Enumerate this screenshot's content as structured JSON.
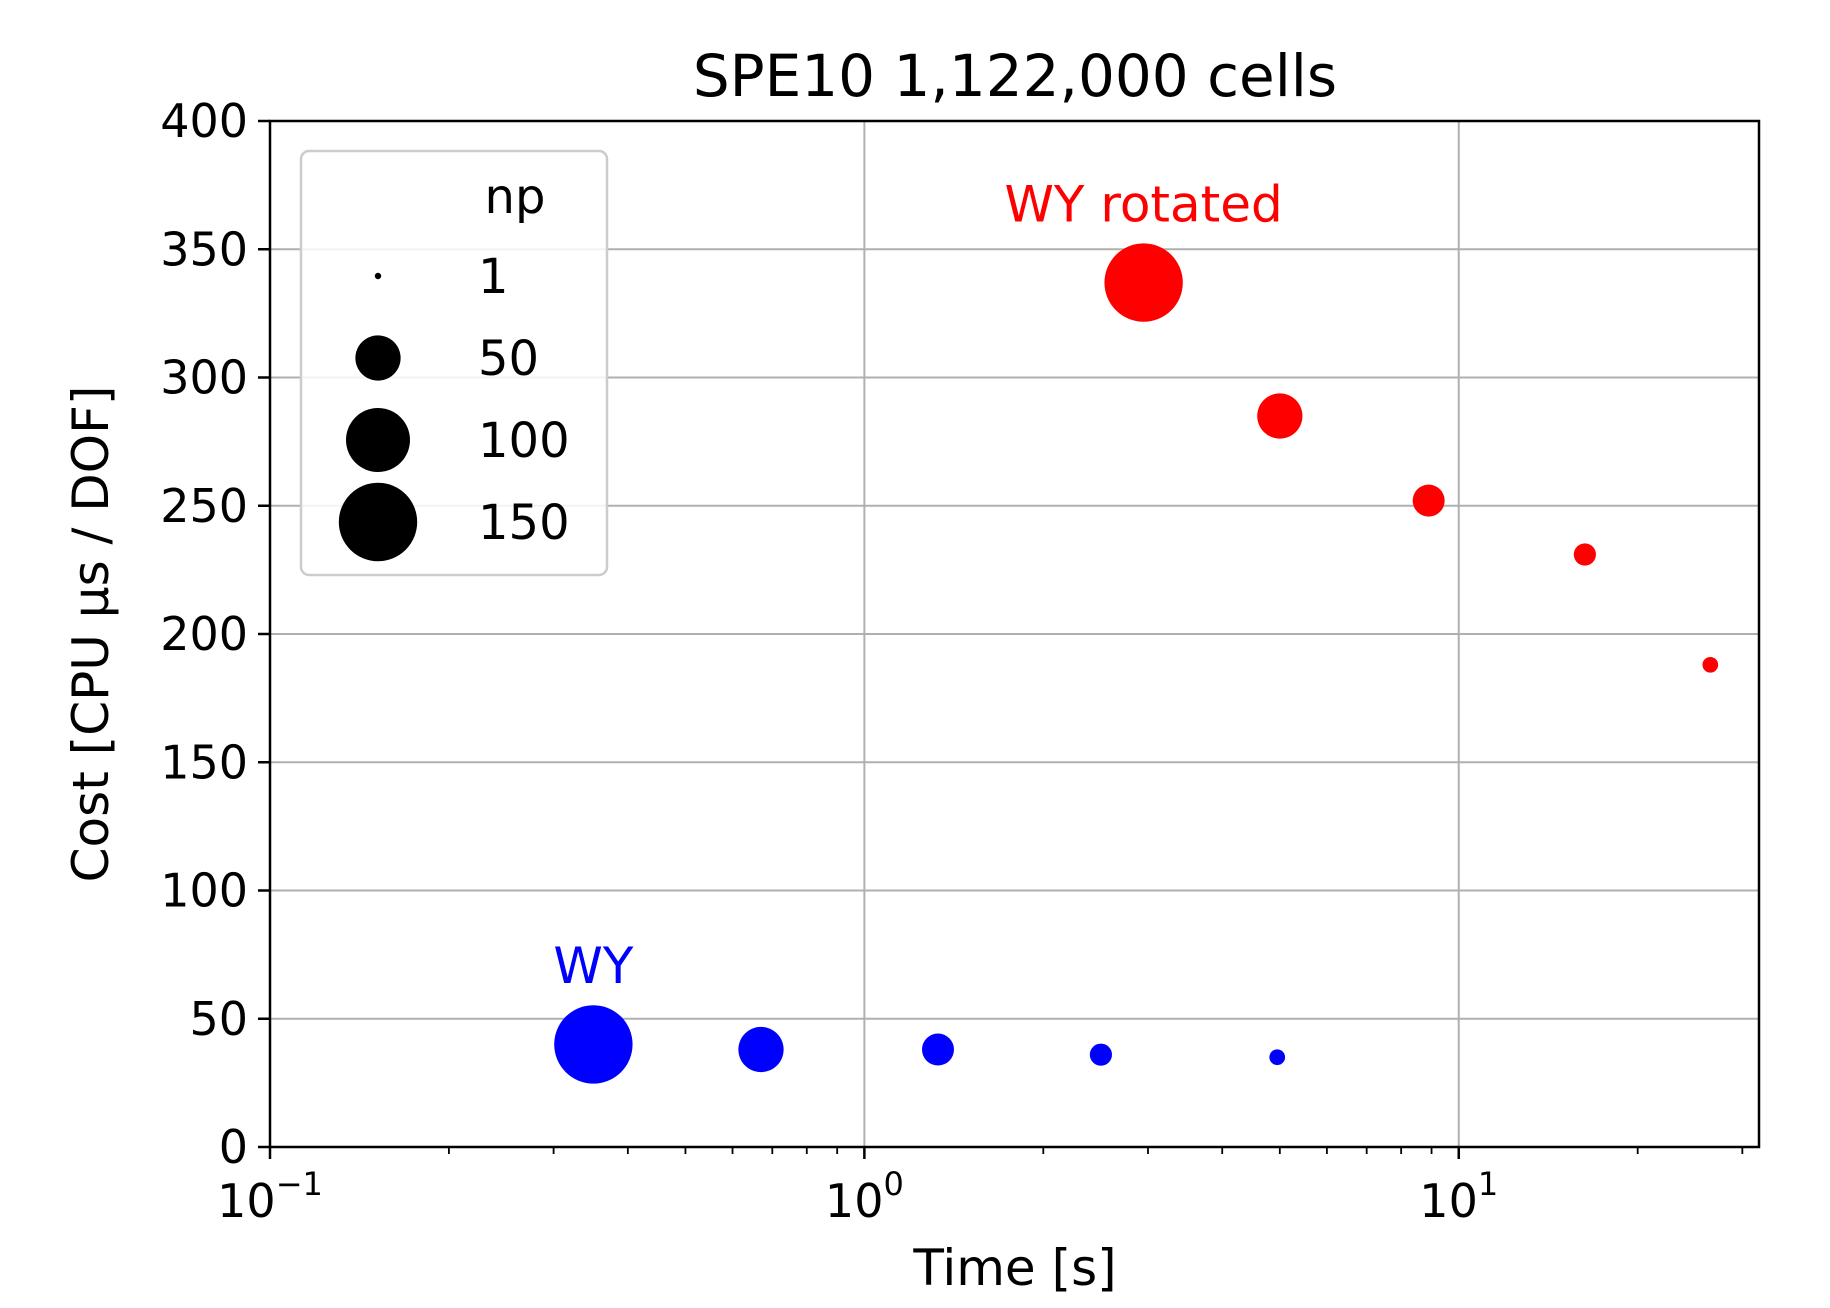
{
  "chart_data": {
    "type": "scatter",
    "title": "SPE10 1,122,000 cells",
    "xlabel": "Time [s]",
    "ylabel": "Cost [CPU μs / DOF]",
    "x_scale": "log",
    "xlim": [
      0.1,
      32
    ],
    "ylim": [
      0,
      400
    ],
    "x_ticks": [
      {
        "base": "10",
        "exp": "−1"
      },
      {
        "base": "10",
        "exp": "0"
      },
      {
        "base": "10",
        "exp": "1"
      }
    ],
    "y_ticks": [
      "0",
      "50",
      "100",
      "150",
      "200",
      "250",
      "300",
      "350",
      "400"
    ],
    "grid": true,
    "legend": {
      "placement": "upper-left",
      "title": "np",
      "entries": [
        "1",
        "50",
        "100",
        "150"
      ]
    },
    "series": [
      {
        "name": "WY rotated",
        "color": "#ff0000",
        "points": [
          {
            "x": 26.5,
            "y": 188,
            "np": 6
          },
          {
            "x": 16.3,
            "y": 231,
            "np": 12
          },
          {
            "x": 8.9,
            "y": 252,
            "np": 25
          },
          {
            "x": 5.0,
            "y": 285,
            "np": 50
          },
          {
            "x": 2.95,
            "y": 337,
            "np": 150
          }
        ]
      },
      {
        "name": "WY",
        "color": "#0000ff",
        "points": [
          {
            "x": 4.95,
            "y": 35,
            "np": 6
          },
          {
            "x": 2.5,
            "y": 36,
            "np": 12
          },
          {
            "x": 1.33,
            "y": 38,
            "np": 25
          },
          {
            "x": 0.67,
            "y": 38,
            "np": 50
          },
          {
            "x": 0.35,
            "y": 40,
            "np": 150
          }
        ]
      }
    ]
  }
}
